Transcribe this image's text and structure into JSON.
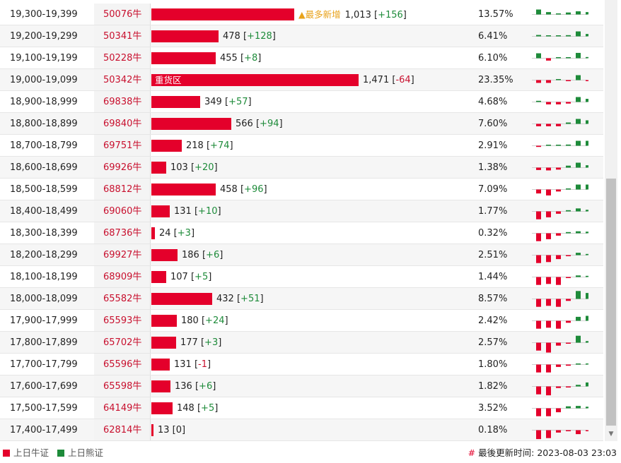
{
  "colors": {
    "bull": "#e4002b",
    "bear": "#1e8b3a",
    "badge": "#e8a21a"
  },
  "rows": [
    {
      "range": "19,300-19,399",
      "code": "50076牛",
      "value": "1,013",
      "change": "+156",
      "pct": "13.57%",
      "bar_pct": 0.69,
      "badge": "▲最多新增",
      "spark": [
        0.25,
        0.12,
        0.05,
        0.1,
        0.16,
        0.12
      ]
    },
    {
      "range": "19,200-19,299",
      "code": "50341牛",
      "value": "478",
      "change": "+128",
      "pct": "6.41%",
      "bar_pct": 0.325,
      "spark": [
        0.07,
        0.05,
        0.04,
        0.06,
        0.25,
        0.12
      ]
    },
    {
      "range": "19,100-19,199",
      "code": "50228牛",
      "value": "455",
      "change": "+8",
      "pct": "6.10%",
      "bar_pct": 0.309,
      "spark": [
        0.25,
        -0.12,
        0.05,
        0.05,
        0.27,
        0.06
      ]
    },
    {
      "range": "19,000-19,099",
      "code": "50342牛",
      "value": "1,471",
      "change": "-64",
      "pct": "23.35%",
      "bar_pct": 1.0,
      "bar_label": "重货区",
      "spark": [
        -0.14,
        -0.14,
        0.03,
        -0.05,
        0.25,
        -0.05
      ]
    },
    {
      "range": "18,900-18,999",
      "code": "69838牛",
      "value": "349",
      "change": "+57",
      "pct": "4.68%",
      "bar_pct": 0.237,
      "spark": [
        0.06,
        -0.12,
        -0.12,
        -0.08,
        0.25,
        0.16
      ]
    },
    {
      "range": "18,800-18,899",
      "code": "69840牛",
      "value": "566",
      "change": "+94",
      "pct": "7.60%",
      "bar_pct": 0.385,
      "spark": [
        -0.12,
        -0.12,
        -0.12,
        0.07,
        0.25,
        0.18
      ]
    },
    {
      "range": "18,700-18,799",
      "code": "69751牛",
      "value": "218",
      "change": "+74",
      "pct": "2.91%",
      "bar_pct": 0.148,
      "spark": [
        -0.06,
        0.0,
        0.03,
        0.06,
        0.25,
        0.25
      ]
    },
    {
      "range": "18,600-18,699",
      "code": "69926牛",
      "value": "103",
      "change": "+20",
      "pct": "1.38%",
      "bar_pct": 0.07,
      "spark": [
        -0.12,
        -0.14,
        -0.1,
        0.1,
        0.25,
        0.12
      ]
    },
    {
      "range": "18,500-18,599",
      "code": "68812牛",
      "value": "458",
      "change": "+96",
      "pct": "7.09%",
      "bar_pct": 0.311,
      "spark": [
        -0.2,
        -0.3,
        -0.1,
        0.05,
        0.25,
        0.25
      ]
    },
    {
      "range": "18,400-18,499",
      "code": "69060牛",
      "value": "131",
      "change": "+10",
      "pct": "1.77%",
      "bar_pct": 0.089,
      "spark": [
        -0.4,
        -0.3,
        -0.12,
        0.06,
        0.15,
        0.08
      ]
    },
    {
      "range": "18,300-18,399",
      "code": "68736牛",
      "value": "24",
      "change": "+3",
      "pct": "0.32%",
      "bar_pct": 0.016,
      "spark": [
        -0.4,
        -0.3,
        -0.12,
        0.06,
        0.1,
        0.08
      ]
    },
    {
      "range": "18,200-18,299",
      "code": "69927牛",
      "value": "186",
      "change": "+6",
      "pct": "2.51%",
      "bar_pct": 0.126,
      "spark": [
        -0.4,
        -0.35,
        -0.2,
        -0.05,
        0.12,
        0.06
      ]
    },
    {
      "range": "18,100-18,199",
      "code": "68909牛",
      "value": "107",
      "change": "+5",
      "pct": "1.44%",
      "bar_pct": 0.073,
      "spark": [
        -0.4,
        -0.35,
        -0.4,
        -0.05,
        0.08,
        0.06
      ]
    },
    {
      "range": "18,000-18,099",
      "code": "65582牛",
      "value": "432",
      "change": "+51",
      "pct": "8.57%",
      "bar_pct": 0.294,
      "spark": [
        -0.4,
        -0.35,
        -0.4,
        -0.1,
        0.4,
        0.3
      ]
    },
    {
      "range": "17,900-17,999",
      "code": "65593牛",
      "value": "180",
      "change": "+24",
      "pct": "2.42%",
      "bar_pct": 0.122,
      "spark": [
        -0.4,
        -0.35,
        -0.4,
        -0.1,
        0.2,
        0.25
      ]
    },
    {
      "range": "17,800-17,899",
      "code": "65702牛",
      "value": "177",
      "change": "+3",
      "pct": "2.57%",
      "bar_pct": 0.12,
      "spark": [
        -0.4,
        -0.5,
        -0.15,
        -0.05,
        0.35,
        0.08
      ]
    },
    {
      "range": "17,700-17,799",
      "code": "65596牛",
      "value": "131",
      "change": "-1",
      "pct": "1.80%",
      "bar_pct": 0.089,
      "spark": [
        -0.4,
        -0.4,
        -0.12,
        -0.06,
        0.0,
        0.0
      ]
    },
    {
      "range": "17,600-17,699",
      "code": "65598牛",
      "value": "136",
      "change": "+6",
      "pct": "1.82%",
      "bar_pct": 0.092,
      "spark": [
        -0.4,
        -0.45,
        -0.08,
        -0.02,
        0.08,
        0.2
      ]
    },
    {
      "range": "17,500-17,599",
      "code": "64149牛",
      "value": "148",
      "change": "+5",
      "pct": "3.52%",
      "bar_pct": 0.101,
      "spark": [
        -0.4,
        -0.4,
        -0.2,
        0.1,
        0.12,
        0.08
      ]
    },
    {
      "range": "17,400-17,499",
      "code": "62814牛",
      "value": "13",
      "change": "0",
      "pct": "0.18%",
      "bar_pct": 0.009,
      "spark": [
        -0.45,
        -0.4,
        -0.12,
        -0.03,
        -0.2,
        -0.03
      ]
    }
  ],
  "legend": {
    "bull": "上日牛证",
    "bear": "上日熊证"
  },
  "updated": {
    "label": "最後更新时间:",
    "time": "2023-08-03 23:03"
  }
}
